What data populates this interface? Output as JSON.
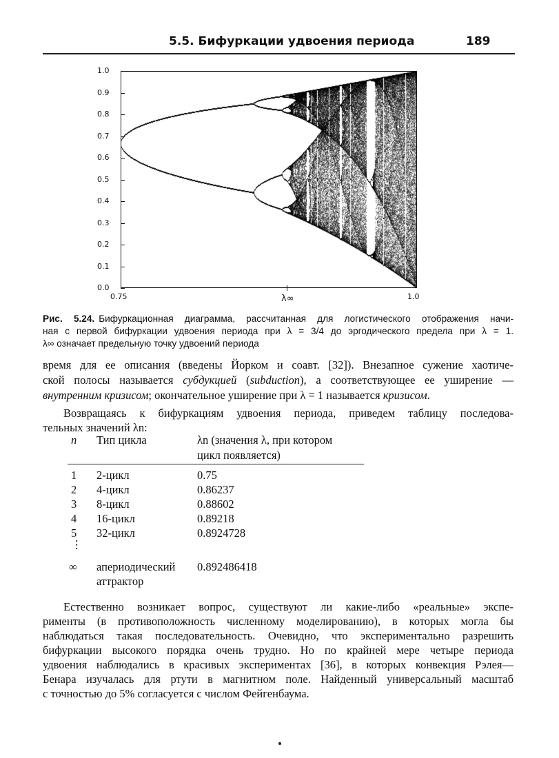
{
  "header": {
    "section": "5.5. Бифуркации удвоения периода",
    "page_number": "189"
  },
  "chart_data": {
    "type": "scatter",
    "description_kind": "bifurcation diagram of logistic map x→4λx(1−x)",
    "xlim": [
      0.75,
      1.0
    ],
    "ylim": [
      0.0,
      1.0
    ],
    "x_tick_labels": [
      "0.75",
      "λ∞",
      "1.0"
    ],
    "y_tick_labels": [
      "0.0",
      "0.1",
      "0.2",
      "0.3",
      "0.4",
      "0.5",
      "0.6",
      "0.7",
      "0.8",
      "0.9",
      "1.0"
    ],
    "lambda_inf": 0.892486418,
    "grid": false
  },
  "caption": {
    "label": "Рис. 5.24.",
    "lines": [
      "Бифуркационная диаграмма, рассчитанная для логистического отображения начи-",
      "ная с первой бифуркации удвоения периода при λ = 3/4 до эргодического предела при λ = 1.",
      "λ∞ означает предельную точку удвоений периода"
    ]
  },
  "para1": {
    "l1": "время для ее описания (введены Йорком и соавт. [32]). Внезапное сужение хаотиче-",
    "l2a": "ской полосы называется ",
    "l2b": "субдукцией",
    "l2c": " (",
    "l2d": "subduction",
    "l2e": "), а соответствующее ее уширение —",
    "l3a": "внутренним кризисом",
    "l3b": "; окончательное уширение при λ = 1 называется ",
    "l3c": "кризисом",
    "l3d": "."
  },
  "para2": {
    "l1": "Возвращаясь к бифуркациям удвоения периода, приведем таблицу последова-",
    "l2": "тельных значений λn:"
  },
  "table": {
    "headers": [
      "n",
      "Тип цикла",
      "λn (значения λ, при котором",
      "цикл появляется)"
    ],
    "rows": [
      {
        "n": "1",
        "type": "2-цикл",
        "value": "0.75"
      },
      {
        "n": "2",
        "type": "4-цикл",
        "value": "0.86237"
      },
      {
        "n": "3",
        "type": "8-цикл",
        "value": "0.88602"
      },
      {
        "n": "4",
        "type": "16-цикл",
        "value": "0.89218"
      },
      {
        "n": "5",
        "type": "32-цикл",
        "value": "0.8924728"
      }
    ],
    "ellipsis": "⋮",
    "last": {
      "n": "∞",
      "type1": "апериодический",
      "type2": "аттрактор",
      "value": "0.892486418"
    }
  },
  "para3": {
    "lines": [
      "Естественно возникает вопрос, существуют ли какие-либо «реальные» экспе-",
      "рименты (в противоположность численному моделированию), в которых могла бы",
      "наблюдаться такая последовательность. Очевидно, что экспериментально разрешить",
      "бифуркации высокого порядка очень трудно. Но по крайней мере четыре периода",
      "удвоения наблюдались в красивых экспериментах [36], в которых конвекция Рэлея—",
      "Бенара изучалась для ртути в магнитном поле. Найденный универсальный масштаб",
      "с точностью до 5% согласуется с числом Фейгенбаума."
    ]
  }
}
